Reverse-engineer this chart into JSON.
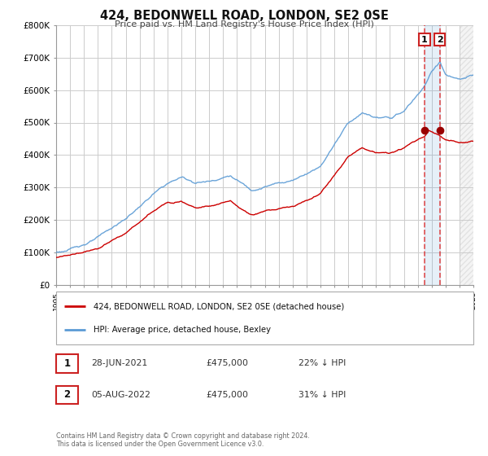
{
  "title": "424, BEDONWELL ROAD, LONDON, SE2 0SE",
  "subtitle": "Price paid vs. HM Land Registry's House Price Index (HPI)",
  "ylim": [
    0,
    800000
  ],
  "yticks": [
    0,
    100000,
    200000,
    300000,
    400000,
    500000,
    600000,
    700000,
    800000
  ],
  "ytick_labels": [
    "£0",
    "£100K",
    "£200K",
    "£300K",
    "£400K",
    "£500K",
    "£600K",
    "£700K",
    "£800K"
  ],
  "hpi_color": "#5b9bd5",
  "price_color": "#cc0000",
  "marker_color": "#990000",
  "vline_color": "#dd3333",
  "annotation_box_color": "#cc2222",
  "background_color": "#ffffff",
  "grid_color": "#cccccc",
  "legend_label_price": "424, BEDONWELL ROAD, LONDON, SE2 0SE (detached house)",
  "legend_label_hpi": "HPI: Average price, detached house, Bexley",
  "transaction1_date": "28-JUN-2021",
  "transaction1_price": "£475,000",
  "transaction1_hpi": "22% ↓ HPI",
  "transaction2_date": "05-AUG-2022",
  "transaction2_price": "£475,000",
  "transaction2_hpi": "31% ↓ HPI",
  "copyright_text": "Contains HM Land Registry data © Crown copyright and database right 2024.\nThis data is licensed under the Open Government Licence v3.0.",
  "x_start_year": 1995,
  "x_end_year": 2025,
  "sale1_year": 2021.49,
  "sale2_year": 2022.59,
  "sale1_price": 475000,
  "sale2_price": 475000
}
